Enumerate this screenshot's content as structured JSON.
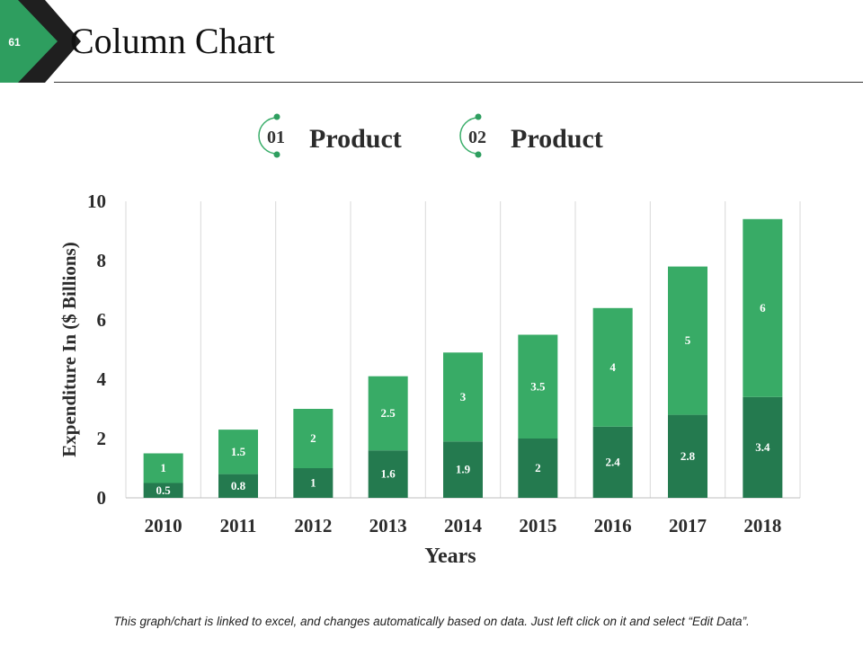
{
  "slide": {
    "number": "61",
    "title": "Column Chart",
    "footer_note": "This graph/chart is linked to excel, and changes automatically based on data. Just left click on it and select “Edit Data”."
  },
  "legend": [
    {
      "number": "01",
      "label": "Product",
      "color": "#3aae6a"
    },
    {
      "number": "02",
      "label": "Product",
      "color": "#3aae6a"
    }
  ],
  "colors": {
    "accent": "#2e9e5f",
    "badge_dark": "#1f1f1f",
    "series_bottom": "#247a4f",
    "series_top": "#38ab66",
    "grid": "#d9d9d9"
  },
  "chart_data": {
    "type": "bar",
    "stacked": true,
    "categories": [
      "2010",
      "2011",
      "2012",
      "2013",
      "2014",
      "2015",
      "2016",
      "2017",
      "2018"
    ],
    "series": [
      {
        "values": [
          0.5,
          0.8,
          1,
          1.6,
          1.9,
          2,
          2.4,
          2.8,
          3.4
        ],
        "color": "#247a4f"
      },
      {
        "values": [
          1,
          1.5,
          2,
          2.5,
          3,
          3.5,
          4,
          5,
          6
        ],
        "color": "#38ab66"
      }
    ],
    "xlabel": "Years",
    "ylabel": "Expenditure In ($ Billions)",
    "ylim": [
      0,
      10
    ],
    "yticks": [
      0,
      2,
      4,
      6,
      8,
      10
    ],
    "grid": "vertical category dividers",
    "data_labels": true
  }
}
